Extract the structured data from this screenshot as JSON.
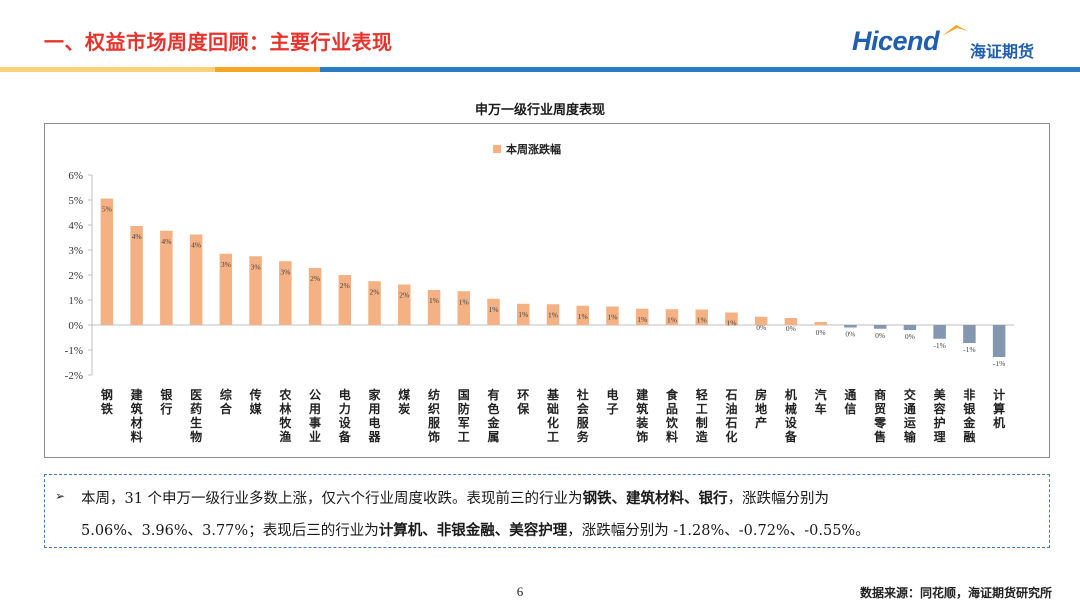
{
  "header": {
    "title": "一、权益市场周度回顾：主要行业表现",
    "logo_en": "Hicend",
    "logo_cn": "海证期货",
    "colors": {
      "title": "#e8332d",
      "brand_blue": "#1f5fae",
      "accent_orange": "#f5a623",
      "stripe_yellow": "#f6d27a",
      "stripe_blue": "#2b7ac4"
    }
  },
  "chart_data": {
    "type": "bar",
    "title": "申万一级行业周度表现",
    "legend": [
      "本周涨跌幅"
    ],
    "legend_position": "top-center",
    "colors": {
      "positive": "#f4b183",
      "negative": "#8497b0"
    },
    "ylim": [
      -2,
      6
    ],
    "yticks": [
      "6%",
      "5%",
      "4%",
      "3%",
      "2%",
      "1%",
      "0%",
      "-1%",
      "-2%"
    ],
    "categories": [
      "钢铁",
      "建筑材料",
      "银行",
      "医药生物",
      "综合",
      "传媒",
      "农林牧渔",
      "公用事业",
      "电力设备",
      "家用电器",
      "煤炭",
      "纺织服饰",
      "国防军工",
      "有色金属",
      "环保",
      "基础化工",
      "社会服务",
      "电子",
      "建筑装饰",
      "食品饮料",
      "轻工制造",
      "石油石化",
      "房地产",
      "机械设备",
      "汽车",
      "通信",
      "商贸零售",
      "交通运输",
      "美容护理",
      "非银金融",
      "计算机"
    ],
    "values": [
      5.06,
      3.96,
      3.77,
      3.62,
      2.85,
      2.75,
      2.55,
      2.28,
      2.0,
      1.75,
      1.62,
      1.4,
      1.35,
      1.05,
      0.85,
      0.83,
      0.77,
      0.74,
      0.65,
      0.63,
      0.62,
      0.5,
      0.33,
      0.28,
      0.12,
      -0.1,
      -0.15,
      -0.2,
      -0.55,
      -0.72,
      -1.28
    ],
    "labels": [
      "5%",
      "4%",
      "4%",
      "4%",
      "3%",
      "3%",
      "3%",
      "2%",
      "2%",
      "2%",
      "2%",
      "1%",
      "1%",
      "1%",
      "1%",
      "1%",
      "1%",
      "1%",
      "1%",
      "1%",
      "1%",
      "1%",
      "0%",
      "0%",
      "0%",
      "0%",
      "0%",
      "0%",
      "-1%",
      "-1%",
      "-1%"
    ]
  },
  "summary": {
    "line1_a": "本周，31 个申万一级行业多数上涨，仅六个行业周度收跌。表现前三的行业为",
    "line1_b": "钢铁、建筑材料、银行",
    "line1_c": "，涨跌幅分别为",
    "line2_a": "5.06%、3.96%、3.77%；表现后三的行业为",
    "line2_b": "计算机、非银金融、美容护理",
    "line2_c": "，涨跌幅分别为 -1.28%、-0.72%、-0.55%。"
  },
  "footer": {
    "page_number": "6",
    "source": "数据来源：同花顺，海证期货研究所"
  }
}
